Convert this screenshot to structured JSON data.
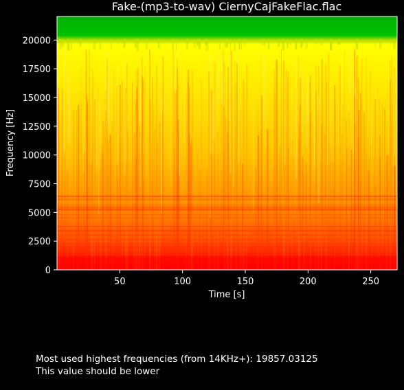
{
  "chart_data": {
    "type": "heatmap",
    "title": "Fake-(mp3-to-wav) CiernyCajFakeFlac.flac",
    "xlabel": "Time [s]",
    "ylabel": "Frequency [Hz]",
    "xlim": [
      0,
      271
    ],
    "ylim": [
      0,
      22050
    ],
    "x_ticks": [
      50,
      100,
      150,
      200,
      250
    ],
    "y_ticks": [
      0,
      2500,
      5000,
      7500,
      10000,
      12500,
      15000,
      17500,
      20000
    ],
    "x_tick_labels": [
      "50",
      "100",
      "150",
      "200",
      "250"
    ],
    "y_tick_labels": [
      "0",
      "2500",
      "5000",
      "7500",
      "10000",
      "12500",
      "15000",
      "17500",
      "20000"
    ],
    "cutoff_frequency": 19857.03125,
    "colormap": [
      "#ff0000",
      "#ff8c00",
      "#ffff00",
      "#00b400"
    ],
    "grid": false
  },
  "result": {
    "line1": "Most used highest frequencies (from 14KHz+): 19857.03125",
    "line2": "This value should be lower"
  }
}
